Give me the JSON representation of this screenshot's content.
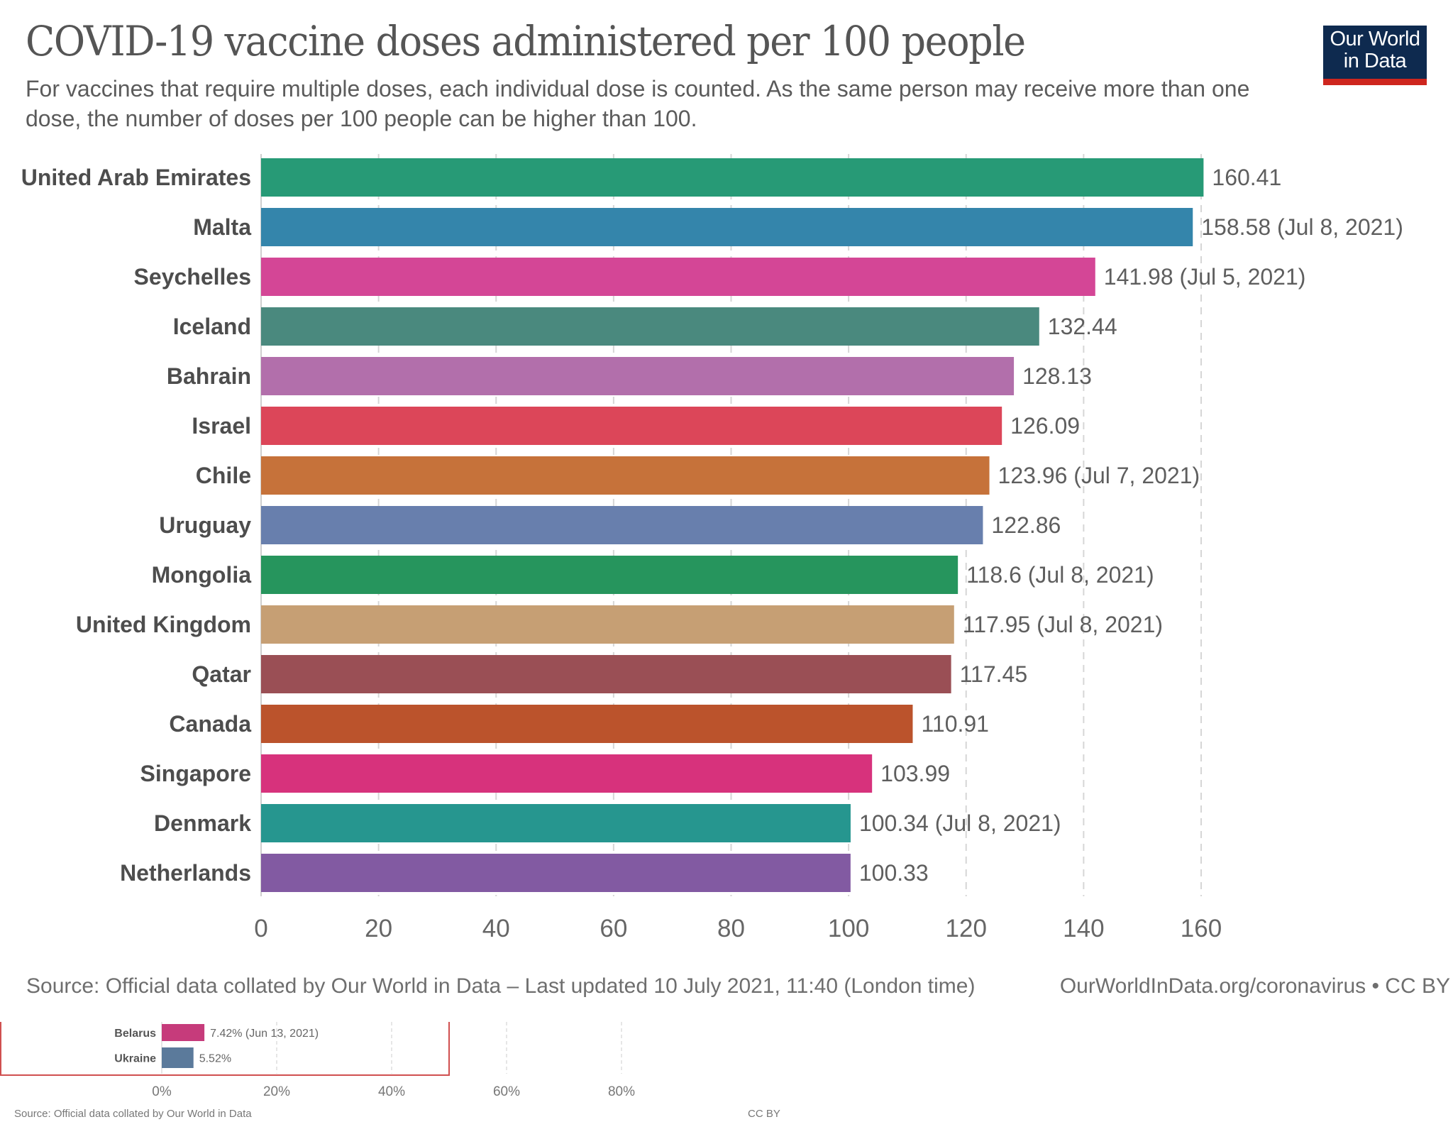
{
  "header": {
    "title": "COVID-19 vaccine doses administered per 100 people",
    "subtitle": "For vaccines that require multiple doses, each individual dose is counted. As the same person may receive more than one dose, the number of doses per 100 people can be higher than 100.",
    "logo_line1": "Our World",
    "logo_line2": "in Data",
    "logo_colors": {
      "background": "#0e2a4f",
      "accent": "#ce261e"
    }
  },
  "chart_data": {
    "type": "bar",
    "orientation": "horizontal",
    "title": "COVID-19 vaccine doses administered per 100 people",
    "xlabel": "",
    "ylabel": "",
    "xlim": [
      0,
      160
    ],
    "x_ticks": [
      0,
      20,
      40,
      60,
      80,
      100,
      120,
      140,
      160
    ],
    "x_tick_labels": [
      "0",
      "20",
      "40",
      "60",
      "80",
      "100",
      "120",
      "140",
      "160"
    ],
    "grid": "vertical-dashed",
    "categories": [
      "United Arab Emirates",
      "Malta",
      "Seychelles",
      "Iceland",
      "Bahrain",
      "Israel",
      "Chile",
      "Uruguay",
      "Mongolia",
      "United Kingdom",
      "Qatar",
      "Canada",
      "Singapore",
      "Denmark",
      "Netherlands"
    ],
    "values": [
      160.41,
      158.58,
      141.98,
      132.44,
      128.13,
      126.09,
      123.96,
      122.86,
      118.6,
      117.95,
      117.45,
      110.91,
      103.99,
      100.34,
      100.33
    ],
    "value_labels": [
      "160.41",
      "158.58 (Jul 8, 2021)",
      "141.98 (Jul 5, 2021)",
      "132.44",
      "128.13",
      "126.09",
      "123.96 (Jul 7, 2021)",
      "122.86",
      "118.6 (Jul 8, 2021)",
      "117.95 (Jul 8, 2021)",
      "117.45",
      "110.91",
      "103.99",
      "100.34 (Jul 8, 2021)",
      "100.33"
    ],
    "colors": [
      "#279a76",
      "#3485ab",
      "#d44696",
      "#4a897e",
      "#b26fab",
      "#dc4659",
      "#c6723a",
      "#687fad",
      "#26955d",
      "#c69f74",
      "#9a4f55",
      "#bb532c",
      "#d7327c",
      "#26968f",
      "#825aa2"
    ]
  },
  "footer": {
    "source": "Source: Official data collated by Our World in Data – Last updated 10 July 2021, 11:40 (London time)",
    "right": "OurWorldInData.org/coronavirus • CC BY"
  },
  "fragment": {
    "categories": [
      "Belarus",
      "Ukraine"
    ],
    "values": [
      7.42,
      5.52
    ],
    "value_labels": [
      "7.42% (Jun 13, 2021)",
      "5.52%"
    ],
    "colors": [
      "#c63b7b",
      "#5b7a9b"
    ],
    "x_tick_labels": [
      "0%",
      "20%",
      "40%",
      "60%",
      "80%"
    ],
    "x_ticks": [
      0,
      20,
      40,
      60,
      80
    ],
    "border_color": "#d05050",
    "source": "Source: Official data collated by Our World in Data",
    "license": "CC BY"
  }
}
